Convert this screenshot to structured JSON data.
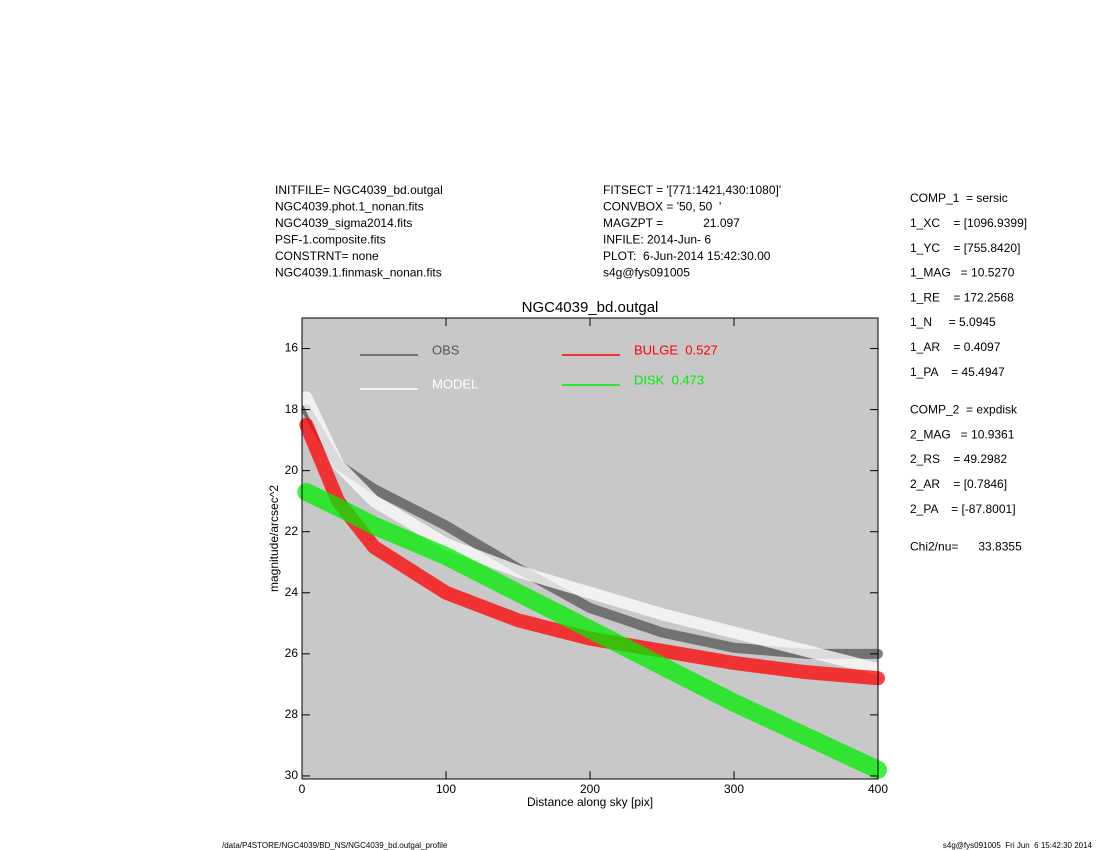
{
  "header": {
    "left": [
      "INITFILE= NGC4039_bd.outgal",
      "NGC4039.phot.1_nonan.fits",
      "NGC4039_sigma2014.fits",
      "PSF-1.composite.fits",
      "CONSTRNT= none",
      "NGC4039.1.finmask_nonan.fits"
    ],
    "middle": [
      "FITSECT = '[771:1421,430:1080]'",
      "CONVBOX = '50, 50  '",
      "MAGZPT =            21.097",
      "INFILE: 2014-Jun- 6",
      "PLOT:  6-Jun-2014 15:42:30.00",
      "s4g@fys091005"
    ]
  },
  "parameters": [
    [
      "COMP_1  = sersic",
      "1_XC    = [1096.9399]",
      "1_YC    = [755.8420]",
      "1_MAG   = 10.5270",
      "1_RE    = 172.2568",
      "1_N     = 5.0945",
      "1_AR    = 0.4097",
      "1_PA    = 45.4947"
    ],
    [
      "COMP_2  = expdisk",
      "2_MAG   = 10.9361",
      "2_RS    = 49.2982",
      "2_AR    = [0.7846]",
      "2_PA    = [-87.8001]"
    ],
    [
      "Chi2/nu=      33.8355"
    ]
  ],
  "footer": {
    "left": "/data/P4STORE/NGC4039/BD_NS/NGC4039_bd.outgal_profile",
    "right": "s4g@fys091005  Fri Jun  6 15:42:30 2014"
  },
  "chart_data": {
    "type": "line",
    "title": "NGC4039_bd.outgal",
    "x_label": "Distance along sky [pix]",
    "y_label": "magnitude/arcsec^2",
    "x": [
      3,
      25,
      50,
      100,
      150,
      200,
      250,
      300,
      350,
      400
    ],
    "series": [
      {
        "name": "OBS",
        "color": "#555555",
        "values": [
          18.0,
          19.8,
          20.6,
          21.8,
          23.2,
          24.5,
          25.3,
          25.8,
          26.0,
          26.0
        ]
      },
      {
        "name": "MODEL",
        "color": "#ffffff",
        "values": [
          17.6,
          19.8,
          21.0,
          22.4,
          23.3,
          24.0,
          24.7,
          25.3,
          25.9,
          26.5
        ]
      },
      {
        "name": "BULGE  0.527",
        "color": "#ff0000",
        "values": [
          18.5,
          21.0,
          22.5,
          24.0,
          24.9,
          25.5,
          25.9,
          26.3,
          26.6,
          26.8
        ]
      },
      {
        "name": "DISK  0.473",
        "color": "#00ee00",
        "values": [
          20.7,
          21.2,
          21.8,
          22.8,
          24.0,
          25.2,
          26.4,
          27.6,
          28.7,
          29.8
        ]
      }
    ],
    "xlim": [
      0,
      400
    ],
    "xticks": [
      0,
      100,
      200,
      300,
      400
    ],
    "ylim": [
      30.1,
      15
    ],
    "yticks": [
      16,
      18,
      20,
      22,
      24,
      26,
      28,
      30
    ],
    "y_reversed": true,
    "background": "#c8c8c8"
  }
}
